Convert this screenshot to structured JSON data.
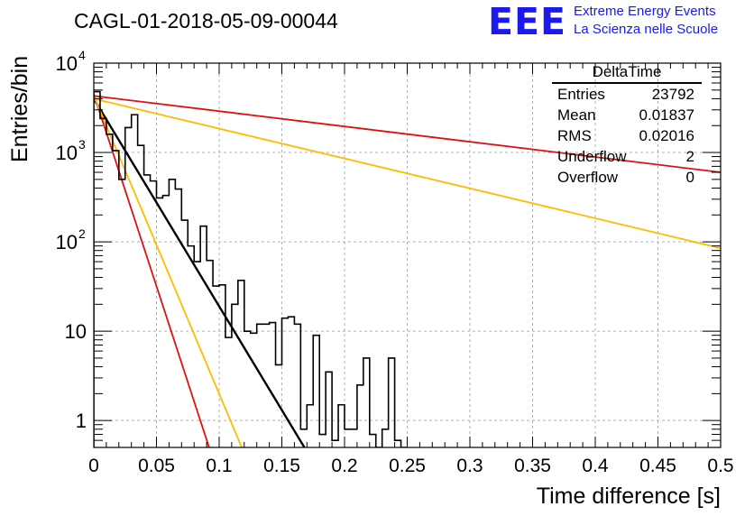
{
  "header": {
    "title": "CAGL-01-2018-05-09-00044",
    "logo_text": "EEE",
    "logo_line1": "Extreme Energy Events",
    "logo_line2": "La Scienza nelle Scuole"
  },
  "stats_box": {
    "name": "DeltaTime",
    "rows": [
      {
        "label": "Entries",
        "value": "23792"
      },
      {
        "label": "Mean",
        "value": "0.01837"
      },
      {
        "label": "RMS",
        "value": "0.02016"
      },
      {
        "label": "Underflow",
        "value": "2"
      },
      {
        "label": "Overflow",
        "value": "0"
      }
    ]
  },
  "chart_data": {
    "type": "histogram",
    "title": "CAGL-01-2018-05-09-00044",
    "xlabel": "Time difference [s]",
    "ylabel": "Entries/bin",
    "xlim": [
      0,
      0.5
    ],
    "ylim": [
      0.5,
      10000
    ],
    "yscale": "log",
    "grid": true,
    "x_ticks": [
      "0",
      "0.05",
      "0.1",
      "0.15",
      "0.2",
      "0.25",
      "0.3",
      "0.35",
      "0.4",
      "0.45",
      "0.5"
    ],
    "y_ticks": [
      {
        "value": 1,
        "label": "1"
      },
      {
        "value": 10,
        "label": "10"
      },
      {
        "value": 100,
        "label": "10",
        "exp": "2"
      },
      {
        "value": 1000,
        "label": "10",
        "exp": "3"
      },
      {
        "value": 10000,
        "label": "10",
        "exp": "4"
      }
    ],
    "histogram": {
      "bin_width": 0.005,
      "bin_start": 0,
      "counts": [
        4800,
        2400,
        1600,
        1050,
        500,
        1900,
        2650,
        1200,
        560,
        480,
        310,
        330,
        500,
        390,
        175,
        90,
        60,
        150,
        62,
        32,
        33,
        8.5,
        20,
        37,
        10,
        9.5,
        12,
        12,
        12.5,
        4.2,
        14,
        14.5,
        12,
        0.8,
        1.5,
        9,
        0.7,
        3.5,
        0.6,
        1.5,
        0.8,
        0.8,
        2.5,
        5,
        0.7,
        0.5,
        0.8,
        5,
        0.6,
        0.5
      ]
    },
    "fits": [
      {
        "color": "#000000",
        "y0": 4000,
        "y_end": 0.5,
        "x_end": 0.168
      },
      {
        "color": "#dd1111",
        "y0": 4500,
        "y_end": 0.5,
        "x_end": 0.092
      },
      {
        "color": "#ffbb00",
        "y0": 4300,
        "y_end": 0.5,
        "x_end": 0.118
      },
      {
        "color": "#dd1111",
        "y0": 4300,
        "y_end": 600,
        "x_end": 0.5
      },
      {
        "color": "#ffbb00",
        "y0": 4000,
        "y_end": 85,
        "x_end": 0.5
      }
    ]
  }
}
